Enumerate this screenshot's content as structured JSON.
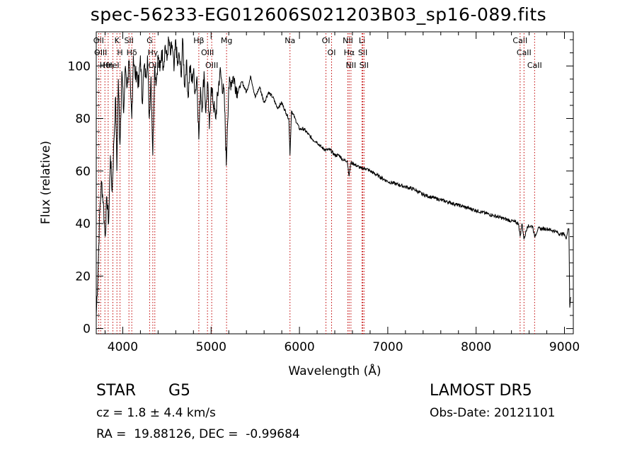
{
  "title": "spec-56233-EG012606S021203B03_sp16-089.fits",
  "info": {
    "object_class": "STAR",
    "subclass": "G5",
    "cz": "cz = 1.8 ± 4.4 km/s",
    "coords": "RA =  19.88126, DEC =  -0.99684",
    "survey": "LAMOST DR5",
    "obs_date": "Obs-Date: 20121101"
  },
  "chart_data": {
    "type": "line",
    "title": "spec-56233-EG012606S021203B03_sp16-089.fits",
    "xlabel": "Wavelength (Å)",
    "ylabel": "Flux (relative)",
    "xlim": [
      3700,
      9100
    ],
    "ylim": [
      -2,
      113
    ],
    "xticks": [
      4000,
      5000,
      6000,
      7000,
      8000,
      9000
    ],
    "yticks": [
      0,
      20,
      40,
      60,
      80,
      100
    ],
    "grid": false,
    "series": [
      {
        "x": [
          3700,
          3720,
          3740,
          3760,
          3780,
          3800,
          3820,
          3840,
          3860,
          3880,
          3900,
          3920,
          3933,
          3950,
          3968,
          3990,
          4010,
          4030,
          4050,
          4070,
          4090,
          4102,
          4120,
          4140,
          4160,
          4180,
          4200,
          4220,
          4240,
          4260,
          4280,
          4300,
          4320,
          4340,
          4360,
          4380,
          4400,
          4420,
          4440,
          4460,
          4480,
          4500,
          4520,
          4540,
          4560,
          4580,
          4600,
          4620,
          4640,
          4660,
          4680,
          4700,
          4720,
          4740,
          4760,
          4780,
          4800,
          4820,
          4840,
          4861,
          4880,
          4900,
          4920,
          4940,
          4960,
          4980,
          5000,
          5050,
          5100,
          5150,
          5172,
          5183,
          5200,
          5250,
          5300,
          5350,
          5400,
          5450,
          5500,
          5550,
          5600,
          5650,
          5700,
          5750,
          5800,
          5850,
          5880,
          5893,
          5910,
          5950,
          6000,
          6050,
          6100,
          6150,
          6200,
          6250,
          6300,
          6350,
          6400,
          6450,
          6500,
          6540,
          6563,
          6580,
          6600,
          6650,
          6700,
          6750,
          6800,
          6900,
          7000,
          7100,
          7200,
          7300,
          7400,
          7500,
          7600,
          7700,
          7800,
          7900,
          8000,
          8100,
          8200,
          8300,
          8400,
          8480,
          8498,
          8520,
          8542,
          8580,
          8640,
          8662,
          8700,
          8800,
          8900,
          8950,
          9000,
          9020,
          9040,
          9050,
          9060,
          9070
        ],
        "y": [
          5,
          22,
          45,
          56,
          48,
          35,
          50,
          40,
          66,
          52,
          72,
          88,
          60,
          95,
          70,
          98,
          82,
          100,
          92,
          102,
          88,
          80,
          104,
          96,
          98,
          92,
          104,
          86,
          100,
          96,
          104,
          80,
          96,
          66,
          100,
          94,
          104,
          98,
          106,
          100,
          108,
          102,
          110,
          104,
          108,
          98,
          110,
          100,
          104,
          96,
          110,
          92,
          102,
          88,
          100,
          94,
          98,
          90,
          96,
          72,
          92,
          84,
          98,
          82,
          94,
          76,
          92,
          80,
          98,
          88,
          62,
          76,
          92,
          96,
          90,
          94,
          90,
          96,
          88,
          92,
          86,
          90,
          88,
          84,
          86,
          82,
          80,
          66,
          83,
          80,
          76,
          76,
          74,
          72,
          71,
          69,
          68,
          68,
          66,
          66,
          64,
          64,
          58,
          63,
          63,
          62,
          61,
          61,
          60,
          58,
          56,
          55,
          54,
          53,
          51,
          50,
          49,
          48,
          47,
          46,
          45,
          44,
          43,
          42,
          41,
          40,
          35,
          40,
          34,
          39,
          39,
          35,
          38,
          38,
          37,
          36,
          36,
          34,
          38,
          38,
          8,
          12
        ]
      }
    ],
    "line_marks": [
      {
        "label": "Hθ",
        "x": 3798
      },
      {
        "label": "OII",
        "x": 3727
      },
      {
        "label": "OIII",
        "x": 3750
      },
      {
        "label": "HeI",
        "x": 3888
      },
      {
        "label": "K",
        "x": 3934
      },
      {
        "label": "Hη",
        "x": 3835
      },
      {
        "label": "H",
        "x": 3969
      },
      {
        "label": "Hδ",
        "x": 4102
      },
      {
        "label": "SII",
        "x": 4070
      },
      {
        "label": "OIII",
        "x": 4363
      },
      {
        "label": "Hγ",
        "x": 4340
      },
      {
        "label": "G",
        "x": 4304
      },
      {
        "label": "OIII",
        "x": 4959
      },
      {
        "label": "OIII",
        "x": 5007
      },
      {
        "label": "Hβ",
        "x": 4861
      },
      {
        "label": "Mg",
        "x": 5175
      },
      {
        "label": "Na",
        "x": 5893
      },
      {
        "label": "OI",
        "x": 6300
      },
      {
        "label": "OI",
        "x": 6364
      },
      {
        "label": "Hα",
        "x": 6563
      },
      {
        "label": "NII",
        "x": 6548
      },
      {
        "label": "NII",
        "x": 6583
      },
      {
        "label": "SII",
        "x": 6717
      },
      {
        "label": "Li",
        "x": 6708
      },
      {
        "label": "SII",
        "x": 6731
      },
      {
        "label": "CaII",
        "x": 8498
      },
      {
        "label": "CaII",
        "x": 8542
      },
      {
        "label": "CaII",
        "x": 8662
      }
    ]
  }
}
